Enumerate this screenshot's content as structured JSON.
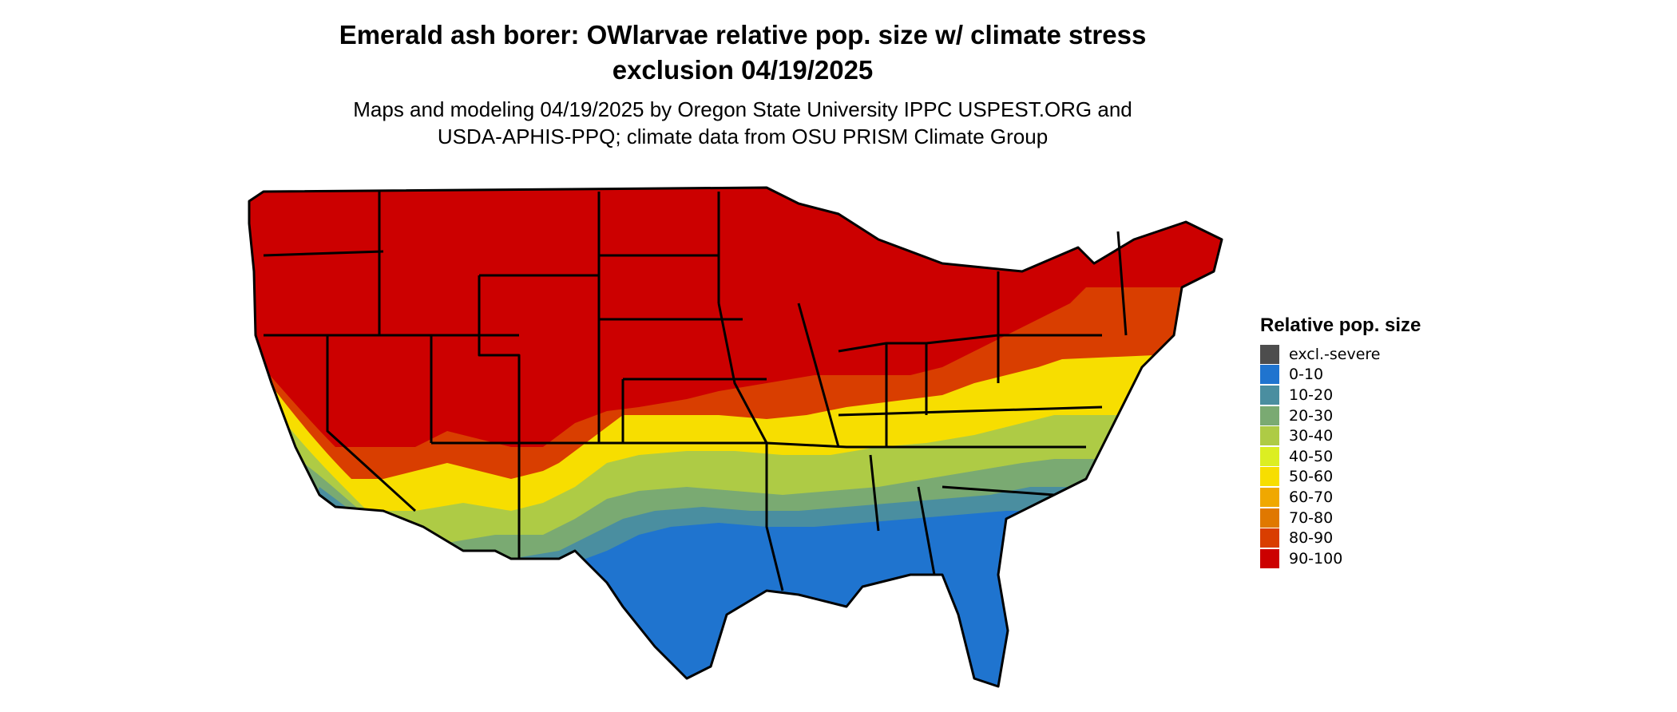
{
  "title_line1": "Emerald ash borer: OWlarvae relative pop. size w/ climate stress",
  "title_line2": "exclusion 04/19/2025",
  "subtitle_line1": "Maps and modeling 04/19/2025 by Oregon State University IPPC USPEST.ORG and",
  "subtitle_line2": "USDA-APHIS-PPQ; climate data from OSU PRISM Climate Group",
  "legend": {
    "title": "Relative pop. size",
    "items": [
      {
        "label": "excl.-severe",
        "color": "#4d4d4d"
      },
      {
        "label": "0-10",
        "color": "#1f74cf"
      },
      {
        "label": "10-20",
        "color": "#4a8ea0"
      },
      {
        "label": "20-30",
        "color": "#7aaa72"
      },
      {
        "label": "30-40",
        "color": "#aecb45"
      },
      {
        "label": "40-50",
        "color": "#dcee22"
      },
      {
        "label": "50-60",
        "color": "#f7de00"
      },
      {
        "label": "60-70",
        "color": "#f0a800"
      },
      {
        "label": "70-80",
        "color": "#e07800"
      },
      {
        "label": "80-90",
        "color": "#d93e00"
      },
      {
        "label": "90-100",
        "color": "#cc0000"
      }
    ]
  }
}
